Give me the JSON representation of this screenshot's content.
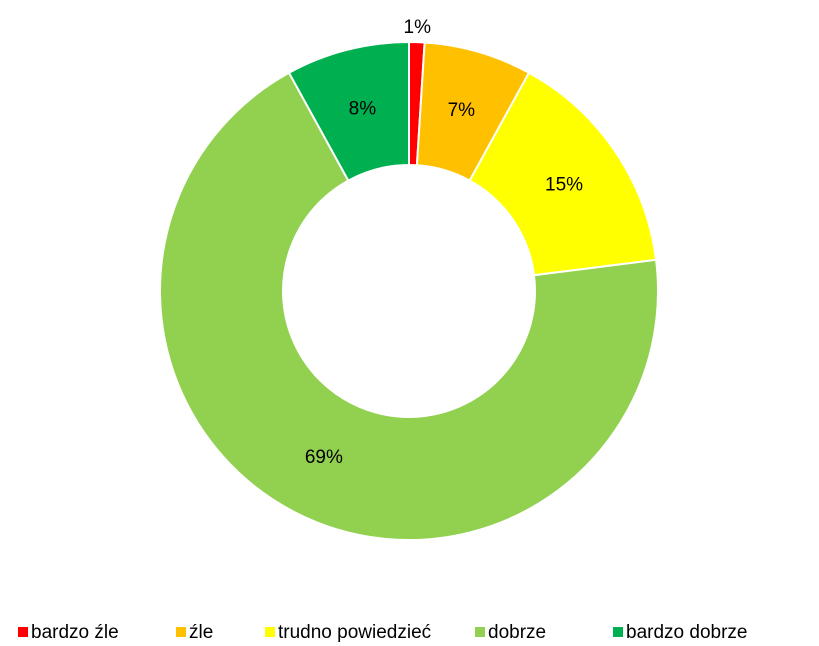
{
  "chart_data": {
    "type": "donut",
    "categories": [
      "bardzo źle",
      "źle",
      "trudno powiedzieć",
      "dobrze",
      "bardzo dobrze"
    ],
    "values": [
      1,
      7,
      15,
      69,
      8
    ],
    "value_labels": [
      "1%",
      "7%",
      "15%",
      "69%",
      "8%"
    ],
    "colors": [
      "#ff0000",
      "#ffc000",
      "#ffff00",
      "#92d050",
      "#00b050"
    ],
    "legend": "bottom"
  }
}
